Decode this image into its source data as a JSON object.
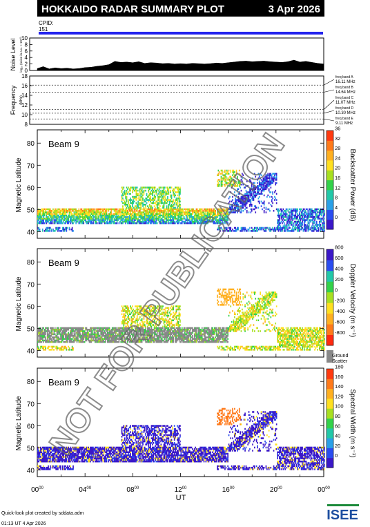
{
  "header": {
    "title": "HOKKAIDO RADAR SUMMARY PLOT",
    "date": "3 Apr 2026",
    "cpid_label": "CPID:",
    "cpid_value": "151",
    "header_bg": "#000000",
    "header_fg": "#ffffff",
    "cpid_bar_color": "#2222ee"
  },
  "noise_panel": {
    "ylabel": "Noise Level",
    "yunit": "log₁₀ (noise in a.u. × 10¹⁰)",
    "yticks": [
      "0",
      "2",
      "4",
      "6",
      "8",
      "10"
    ],
    "ylim": [
      0,
      10
    ],
    "profile": [
      [
        0,
        0.6
      ],
      [
        0.5,
        1.2
      ],
      [
        1,
        0.5
      ],
      [
        1.5,
        0.8
      ],
      [
        2,
        0.6
      ],
      [
        2.5,
        0.7
      ],
      [
        3,
        0.5
      ],
      [
        3.5,
        0.6
      ],
      [
        4,
        0.9
      ],
      [
        4.5,
        1.0
      ],
      [
        5,
        1.3
      ],
      [
        5.5,
        1.5
      ],
      [
        6,
        1.8
      ],
      [
        6.5,
        2.8
      ],
      [
        7,
        2.5
      ],
      [
        7.5,
        2.6
      ],
      [
        8,
        2.4
      ],
      [
        8.5,
        2.7
      ],
      [
        9,
        2.2
      ],
      [
        9.5,
        2.4
      ],
      [
        10,
        2.3
      ],
      [
        10.5,
        2.1
      ],
      [
        11,
        2.2
      ],
      [
        11.5,
        2.0
      ],
      [
        12,
        2.1
      ],
      [
        12.5,
        2.0
      ],
      [
        13,
        2.2
      ],
      [
        13.5,
        2.1
      ],
      [
        14,
        2.0
      ],
      [
        14.5,
        2.1
      ],
      [
        15,
        2.3
      ],
      [
        15.5,
        2.2
      ],
      [
        16,
        2.4
      ],
      [
        16.5,
        2.6
      ],
      [
        17,
        2.8
      ],
      [
        17.5,
        2.9
      ],
      [
        18,
        2.7
      ],
      [
        18.5,
        2.8
      ],
      [
        19,
        2.9
      ],
      [
        19.5,
        2.7
      ],
      [
        20,
        2.6
      ],
      [
        20.5,
        2.5
      ],
      [
        21,
        2.7
      ],
      [
        21.5,
        3.2
      ],
      [
        22,
        2.6
      ],
      [
        22.5,
        2.8
      ],
      [
        23,
        2.5
      ],
      [
        23.5,
        2.2
      ],
      [
        24,
        2.0
      ]
    ]
  },
  "freq_panel": {
    "ylabel": "Frequency",
    "yunit": "(MHz)",
    "yticks": [
      "8",
      "10",
      "12",
      "14",
      "16",
      "18"
    ],
    "ylim": [
      8,
      18
    ],
    "bands": [
      {
        "label": "freq band A",
        "mhz": "16.11 MHz",
        "value": 16.11
      },
      {
        "label": "freq band B",
        "mhz": "14.64 MHz",
        "value": 14.64
      },
      {
        "label": "freq band C",
        "mhz": "11.07 MHz",
        "value": 11.07
      },
      {
        "label": "freq band D",
        "mhz": "10.30 MHz",
        "value": 10.3
      },
      {
        "label": "freq band E",
        "mhz": "9.11 MHz",
        "value": 9.11
      }
    ]
  },
  "panels": [
    {
      "beam_label": "Beam  9",
      "ylabel": "Magnetic Latitude",
      "colorbar_label": "Backscatter Power (dB)",
      "colorbar_ticks": [
        "0",
        "4",
        "8",
        "12",
        "16",
        "20",
        "24",
        "28",
        "32",
        "36"
      ],
      "colorbar_range": [
        0,
        36
      ],
      "colorbar_colors": [
        "#3b18c8",
        "#2a4df0",
        "#2aa0e8",
        "#22c8a8",
        "#33d24a",
        "#a8e020",
        "#ffe020",
        "#ffb020",
        "#ff7a1a",
        "#ff3a10"
      ],
      "ground_scatter": false
    },
    {
      "beam_label": "Beam  9",
      "ylabel": "Magnetic Latitude",
      "colorbar_label": "Doppler Velocity (m s⁻¹)",
      "colorbar_ticks": [
        "-800",
        "-600",
        "-400",
        "-200",
        "0",
        "200",
        "400",
        "600",
        "800"
      ],
      "colorbar_range": [
        -800,
        800
      ],
      "colorbar_colors": [
        "#ff2a10",
        "#ff7a1a",
        "#ffb020",
        "#ffe020",
        "#a8e020",
        "#33d24a",
        "#22c8a8",
        "#2a4df0",
        "#3b18c8"
      ],
      "ground_scatter": true,
      "ground_label_1": "Ground",
      "ground_label_2": "Scatter"
    },
    {
      "beam_label": "Beam  9",
      "ylabel": "Magnetic Latitude",
      "colorbar_label": "Spectral Width (m s⁻¹)",
      "colorbar_ticks": [
        "0",
        "20",
        "40",
        "60",
        "80",
        "100",
        "120",
        "140",
        "160",
        "180"
      ],
      "colorbar_range": [
        0,
        180
      ],
      "colorbar_colors": [
        "#3b18c8",
        "#2a4df0",
        "#2aa0e8",
        "#22c8a8",
        "#33d24a",
        "#a8e020",
        "#ffe020",
        "#ffb020",
        "#ff7a1a",
        "#ff3a10"
      ],
      "ground_scatter": false
    }
  ],
  "chart_data": {
    "type": "heatmap",
    "x_axis": {
      "label": "UT",
      "ticks": [
        "00",
        "04",
        "08",
        "12",
        "16",
        "20",
        "00"
      ],
      "tick_suffix": "00",
      "range_hours": [
        0,
        24
      ]
    },
    "y_axis": {
      "label": "Magnetic Latitude",
      "ticks": [
        40,
        50,
        60,
        70,
        80
      ],
      "range": [
        37,
        86
      ]
    },
    "scatter_regions": [
      {
        "name": "main band",
        "t_start": 0,
        "t_end": 16,
        "lat_low": 43,
        "lat_high": 50
      },
      {
        "name": "enhanced patch",
        "t_start": 7,
        "t_end": 12,
        "lat_low": 50,
        "lat_high": 60
      },
      {
        "name": "diagonal streak",
        "t_start": 16,
        "t_end": 20,
        "lat_low": 48,
        "lat_high": 66
      },
      {
        "name": "high latitude patch",
        "t_start": 15,
        "t_end": 17,
        "lat_low": 60,
        "lat_high": 68
      },
      {
        "name": "late band",
        "t_start": 20,
        "t_end": 24,
        "lat_low": 41,
        "lat_high": 50
      }
    ]
  },
  "watermark": "NOT FOR PUBLICATION",
  "footer": {
    "credit_line1": "Quick-look plot created by sddata.adm",
    "credit_line2": "01:13 UT  4 Apr 2026",
    "logo_text": "ISEE"
  }
}
